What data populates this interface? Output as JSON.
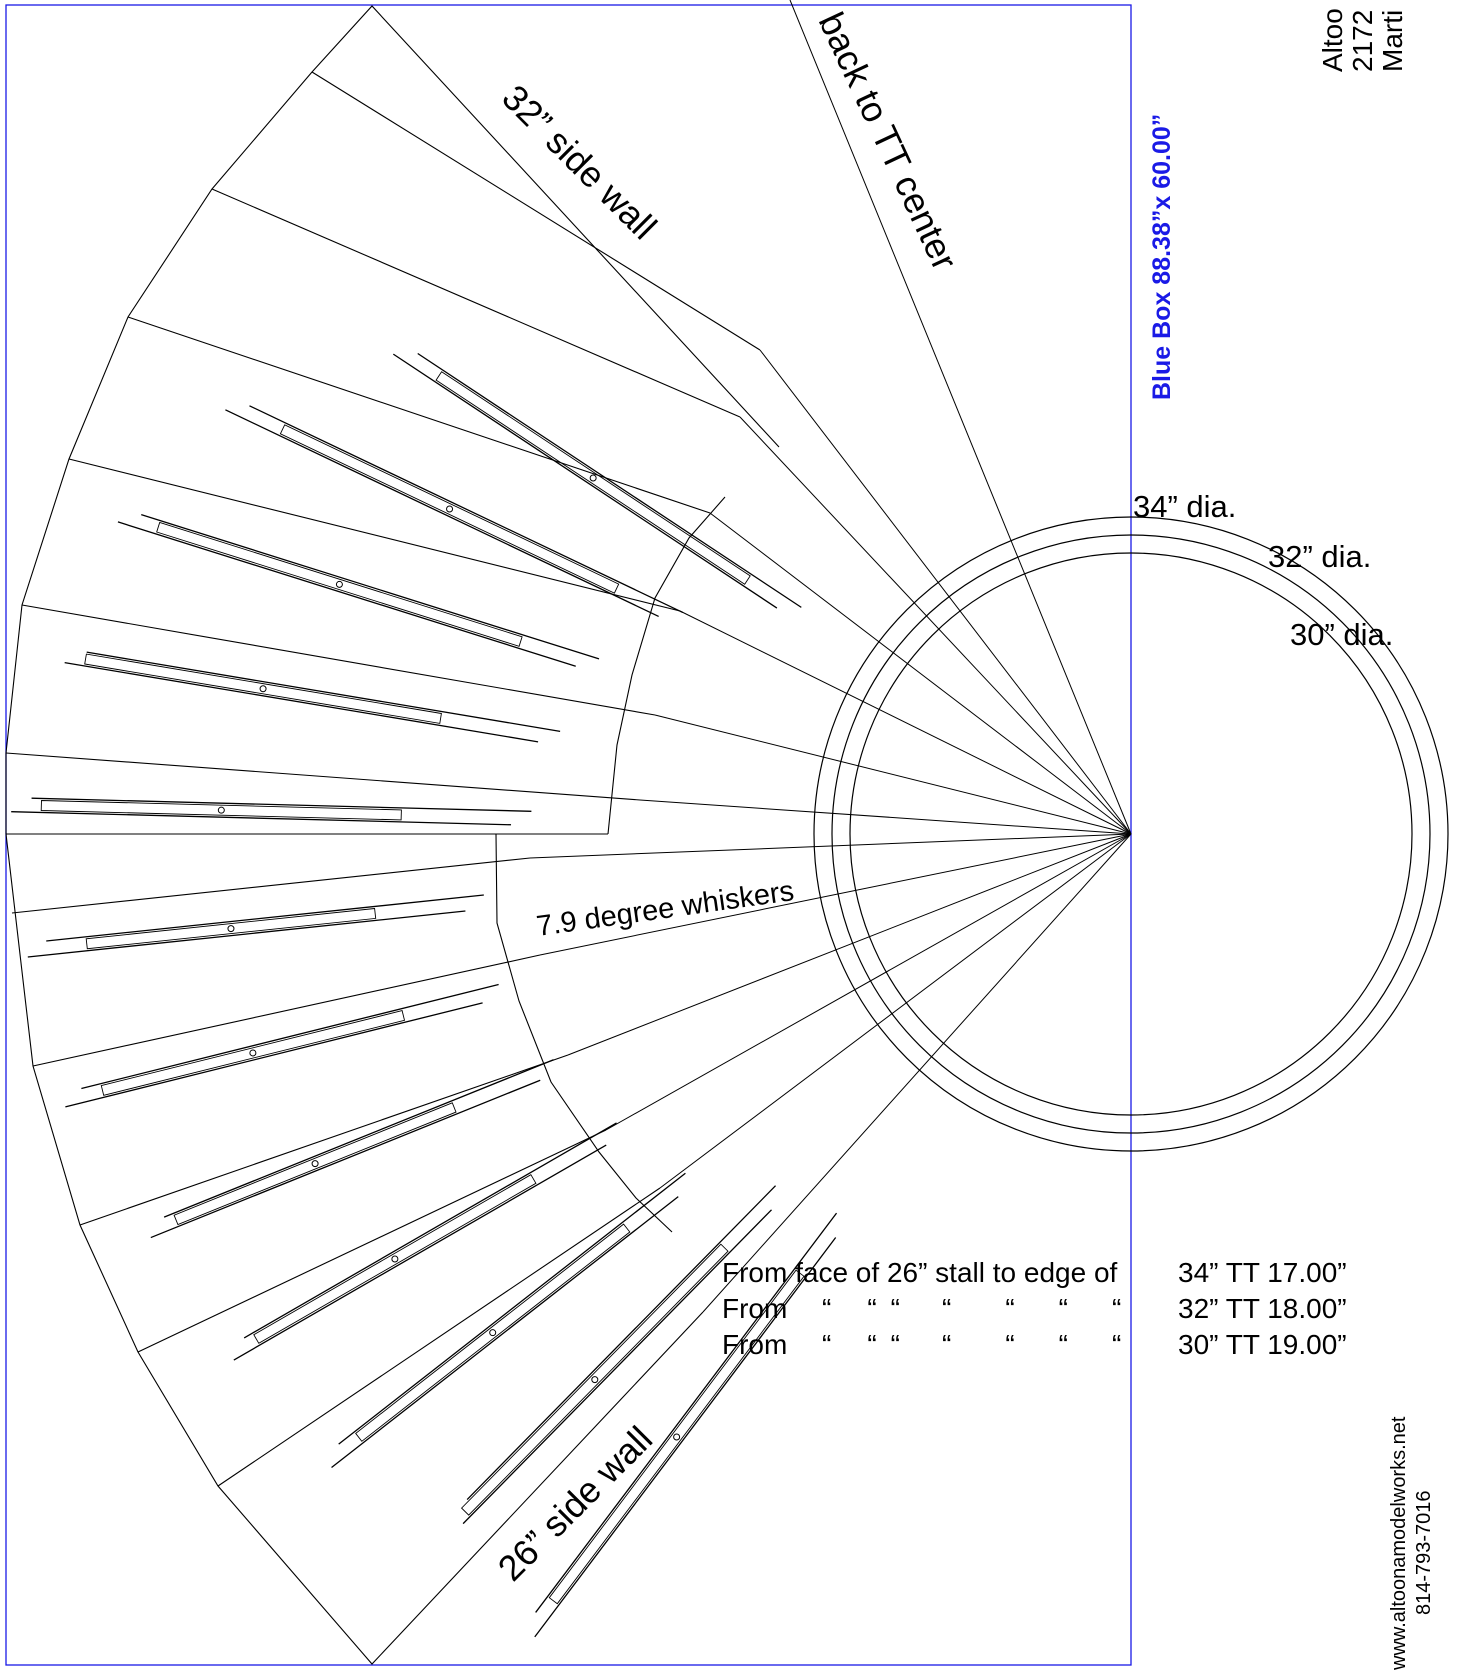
{
  "labels": {
    "back_to_center": "back to TT center",
    "side_wall_32": "32” side wall",
    "side_wall_26": "26” side wall",
    "whiskers": "7.9 degree whiskers",
    "dia_34": "34” dia.",
    "dia_32": "32” dia.",
    "dia_30": "30” dia.",
    "blue_box": "Blue Box 88.38”x 60.00”"
  },
  "measurements": [
    {
      "from": "From face of 26” stall to edge of",
      "value": "34” TT 17.00”"
    },
    {
      "from": "From",
      "value": "32” TT 18.00”"
    },
    {
      "from": "From",
      "value": "30” TT 19.00”"
    }
  ],
  "ditto_mark": "“",
  "footer": {
    "website": "www.altoonamodelworks.net",
    "phone": "814-793-7016"
  },
  "header_fragments": [
    "Altoo",
    "2172",
    "Marti"
  ],
  "colors": {
    "blue_box": "#1a1ae6",
    "lines": "#000000"
  }
}
